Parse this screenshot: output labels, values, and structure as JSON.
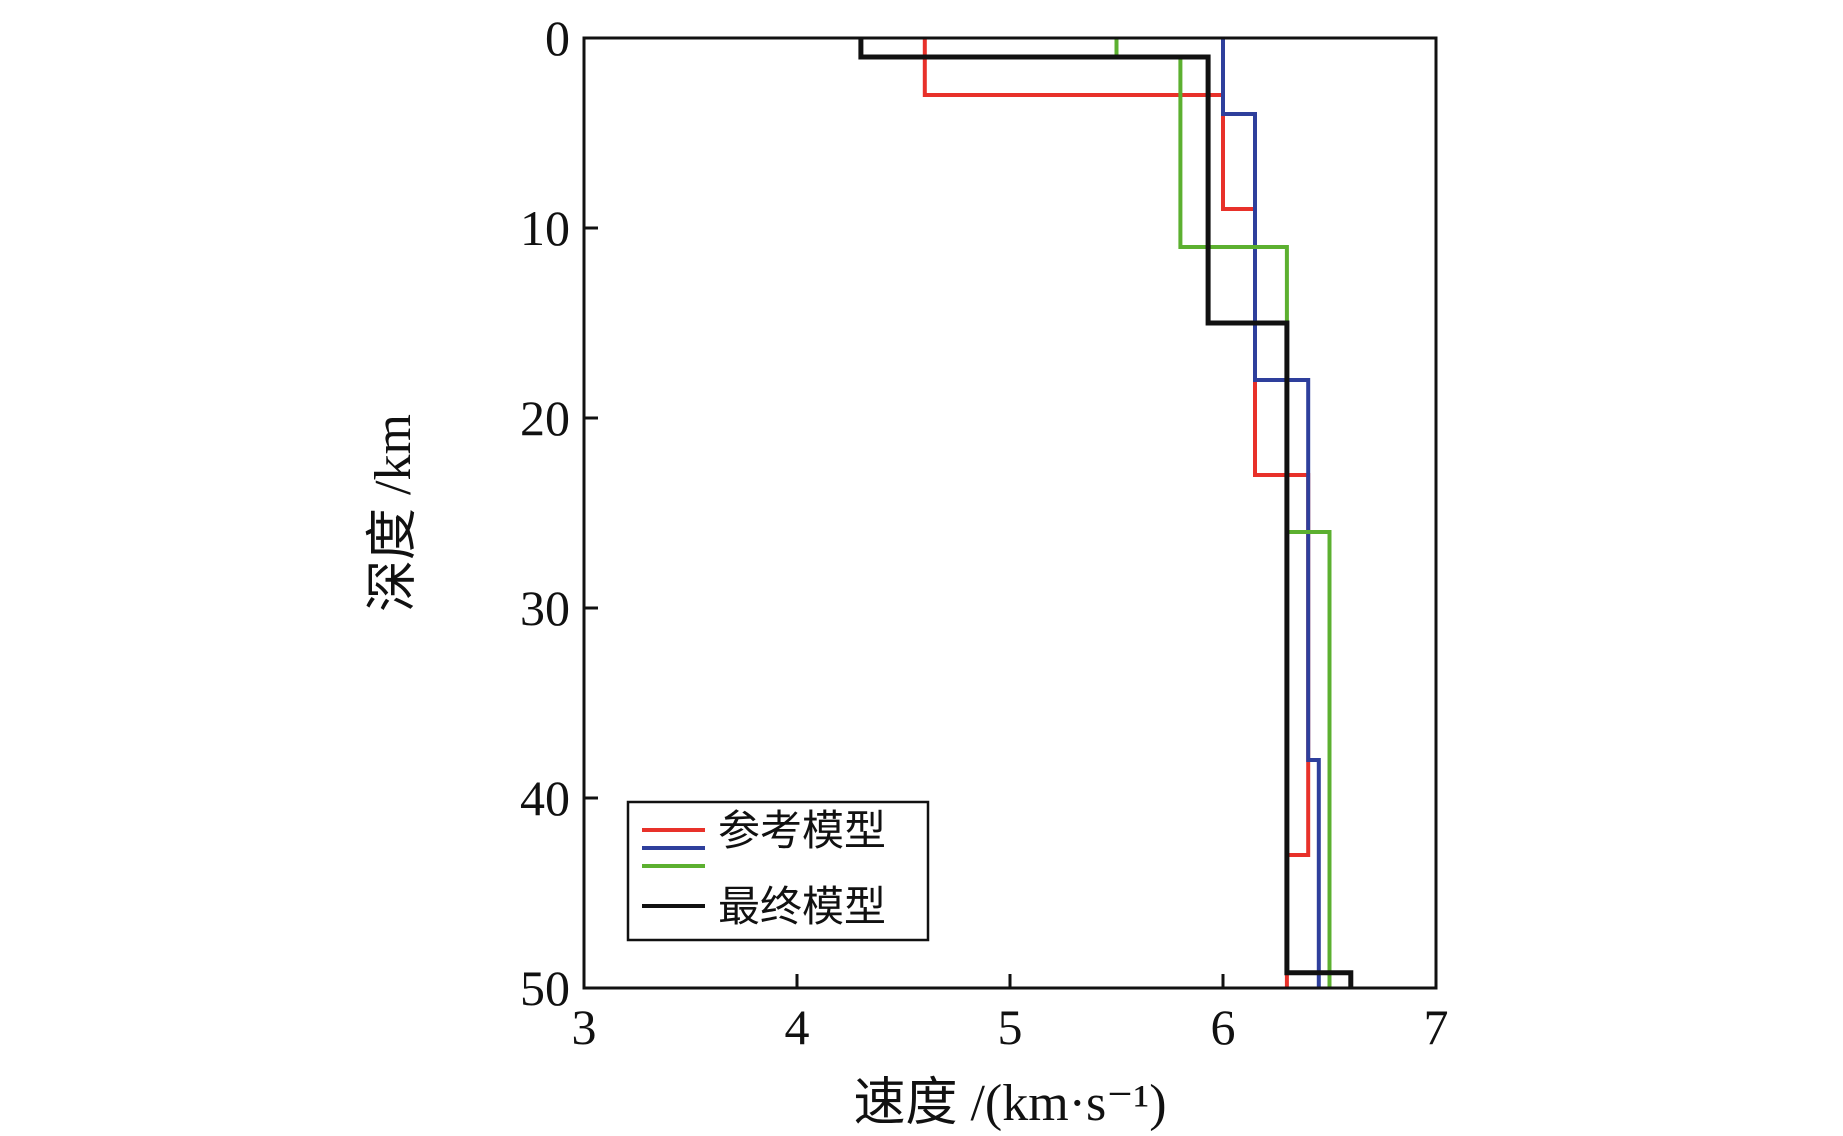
{
  "chart_data": {
    "type": "line",
    "xlabel": "速度 /(km·s⁻¹)",
    "ylabel": "深度 /km",
    "xlim": [
      3,
      7
    ],
    "ylim": [
      0,
      50
    ],
    "y_inverted": true,
    "x_ticks": [
      "3",
      "4",
      "5",
      "6",
      "7"
    ],
    "y_ticks": [
      "0",
      "10",
      "20",
      "30",
      "40",
      "50"
    ],
    "grid": false,
    "legend_position": "bottom-left",
    "series": [
      {
        "name": "参考模型",
        "color": "#e8312a",
        "step_profile": [
          [
            0,
            4.6
          ],
          [
            3,
            6.0
          ],
          [
            9,
            6.15
          ],
          [
            23,
            6.4
          ],
          [
            43,
            6.3
          ],
          [
            50,
            6.3
          ]
        ]
      },
      {
        "name": "",
        "color": "#2e3f9c",
        "step_profile": [
          [
            0,
            6.0
          ],
          [
            4,
            6.15
          ],
          [
            9,
            6.15
          ],
          [
            18,
            6.4
          ],
          [
            38,
            6.45
          ],
          [
            50,
            6.45
          ]
        ]
      },
      {
        "name": "",
        "color": "#5cb030",
        "step_profile": [
          [
            0,
            5.5
          ],
          [
            1,
            5.8
          ],
          [
            11,
            6.3
          ],
          [
            26,
            6.5
          ],
          [
            50,
            6.5
          ]
        ]
      },
      {
        "name": "最终模型",
        "color": "#111111",
        "step_profile": [
          [
            0,
            4.3
          ],
          [
            1,
            5.93
          ],
          [
            15,
            6.3
          ],
          [
            49.2,
            6.6
          ],
          [
            50,
            6.6
          ]
        ]
      }
    ],
    "legend": [
      {
        "label": "参考模型",
        "color": "#e8312a"
      },
      {
        "label": "",
        "color": "#2e3f9c"
      },
      {
        "label": "",
        "color": "#5cb030"
      },
      {
        "label": "最终模型",
        "color": "#111111"
      }
    ]
  }
}
